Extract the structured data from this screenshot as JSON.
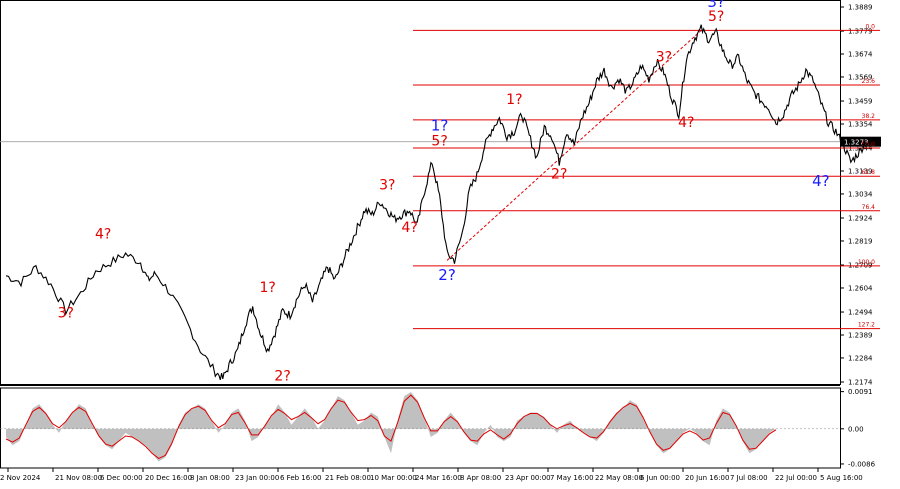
{
  "chart_data": [
    {
      "type": "line",
      "title": "",
      "yticks": [
        "1.3889",
        "1.3779",
        "1.3674",
        "1.3569",
        "1.3459",
        "1.3354",
        "1.3244",
        "1.3139",
        "1.3034",
        "1.2924",
        "1.2819",
        "1.2709",
        "1.2604",
        "1.2494",
        "1.2389",
        "1.2284",
        "1.2174"
      ],
      "ylim": [
        1.2174,
        1.3889
      ],
      "current_price": "1.3273",
      "xticks": [
        "2 Nov 2024",
        "21 Nov 08:00",
        "6 Dec 00:00",
        "20 Dec 16:00",
        "8 Jan 08:00",
        "23 Jan 00:00",
        "6 Feb 16:00",
        "21 Feb 08:00",
        "10 Mar 00:00",
        "24 Mar 16:00",
        "8 Apr 08:00",
        "23 Apr 00:00",
        "7 May 16:00",
        "22 May 08:00",
        "6 Jun 00:00",
        "20 Jun 16:00",
        "7 Jul 08:00",
        "22 Jul 00:00",
        "5 Aug 16:00"
      ],
      "price_path": [
        [
          0,
          1.266
        ],
        [
          2,
          1.263
        ],
        [
          4,
          1.27
        ],
        [
          6,
          1.262
        ],
        [
          8,
          1.25
        ],
        [
          10,
          1.258
        ],
        [
          12,
          1.268
        ],
        [
          14,
          1.272
        ],
        [
          16,
          1.276
        ],
        [
          18,
          1.272
        ],
        [
          19,
          1.264
        ],
        [
          20,
          1.267
        ],
        [
          22,
          1.258
        ],
        [
          24,
          1.246
        ],
        [
          26,
          1.232
        ],
        [
          28,
          1.222
        ],
        [
          29,
          1.219
        ],
        [
          30,
          1.226
        ],
        [
          31,
          1.232
        ],
        [
          32,
          1.244
        ],
        [
          33,
          1.252
        ],
        [
          34,
          1.24
        ],
        [
          35,
          1.232
        ],
        [
          36,
          1.24
        ],
        [
          37,
          1.25
        ],
        [
          38,
          1.248
        ],
        [
          39,
          1.256
        ],
        [
          40,
          1.262
        ],
        [
          41,
          1.254
        ],
        [
          42,
          1.262
        ],
        [
          43,
          1.27
        ],
        [
          44,
          1.264
        ],
        [
          45,
          1.272
        ],
        [
          46,
          1.28
        ],
        [
          47,
          1.288
        ],
        [
          48,
          1.296
        ],
        [
          49,
          1.294
        ],
        [
          50,
          1.3
        ],
        [
          51,
          1.296
        ],
        [
          52,
          1.292
        ],
        [
          53,
          1.294
        ],
        [
          54,
          1.296
        ],
        [
          55,
          1.289
        ],
        [
          56,
          1.305
        ],
        [
          57,
          1.318
        ],
        [
          58,
          1.302
        ],
        [
          59,
          1.276
        ],
        [
          60,
          1.273
        ],
        [
          61,
          1.285
        ],
        [
          62,
          1.305
        ],
        [
          63,
          1.312
        ],
        [
          64,
          1.325
        ],
        [
          65,
          1.333
        ],
        [
          66,
          1.338
        ],
        [
          67,
          1.33
        ],
        [
          68,
          1.332
        ],
        [
          69,
          1.34
        ],
        [
          70,
          1.33
        ],
        [
          71,
          1.32
        ],
        [
          72,
          1.334
        ],
        [
          73,
          1.33
        ],
        [
          74,
          1.318
        ],
        [
          75,
          1.332
        ],
        [
          76,
          1.326
        ],
        [
          77,
          1.338
        ],
        [
          78,
          1.345
        ],
        [
          79,
          1.355
        ],
        [
          80,
          1.36
        ],
        [
          81,
          1.352
        ],
        [
          82,
          1.356
        ],
        [
          83,
          1.35
        ],
        [
          84,
          1.355
        ],
        [
          85,
          1.362
        ],
        [
          86,
          1.356
        ],
        [
          87,
          1.364
        ],
        [
          88,
          1.359
        ],
        [
          89,
          1.348
        ],
        [
          90,
          1.34
        ],
        [
          91,
          1.365
        ],
        [
          92,
          1.374
        ],
        [
          93,
          1.379
        ],
        [
          94,
          1.374
        ],
        [
          95,
          1.377
        ],
        [
          96,
          1.368
        ],
        [
          97,
          1.362
        ],
        [
          98,
          1.366
        ],
        [
          99,
          1.356
        ],
        [
          100,
          1.35
        ],
        [
          101,
          1.346
        ],
        [
          102,
          1.343
        ],
        [
          103,
          1.336
        ],
        [
          104,
          1.34
        ],
        [
          105,
          1.348
        ],
        [
          106,
          1.353
        ],
        [
          107,
          1.36
        ],
        [
          108,
          1.355
        ],
        [
          109,
          1.345
        ],
        [
          110,
          1.336
        ],
        [
          111,
          1.332
        ],
        [
          112,
          1.326
        ],
        [
          113,
          1.318
        ],
        [
          114,
          1.322
        ],
        [
          115,
          1.327
        ],
        [
          116,
          1.3273
        ]
      ],
      "fibonacci_levels": [
        {
          "label": "0.0",
          "value": 1.3782
        },
        {
          "label": "23.6",
          "value": 1.3532
        },
        {
          "label": "38.2",
          "value": 1.3373
        },
        {
          "label": "50.0",
          "value": 1.3244
        },
        {
          "label": "61.8",
          "value": 1.3115
        },
        {
          "label": "76.4",
          "value": 1.2957
        },
        {
          "label": "100.0",
          "value": 1.2705
        },
        {
          "label": "127.2",
          "value": 1.2418
        }
      ],
      "trendline": {
        "from": [
          59,
          1.273
        ],
        "to": [
          93,
          1.3782
        ]
      },
      "wave_labels": [
        {
          "text": "4?",
          "color": "red",
          "i": 13,
          "y": 1.283
        },
        {
          "text": "3?",
          "color": "red",
          "i": 8,
          "y": 1.247
        },
        {
          "text": "1?",
          "color": "red",
          "i": 35,
          "y": 1.2585
        },
        {
          "text": "2?",
          "color": "red",
          "i": 37,
          "y": 1.218
        },
        {
          "text": "3?",
          "color": "red",
          "i": 51,
          "y": 1.3055
        },
        {
          "text": "4?",
          "color": "red",
          "i": 54,
          "y": 1.286
        },
        {
          "text": "1?",
          "color": "blue",
          "i": 58,
          "y": 1.3325
        },
        {
          "text": "5?",
          "color": "red",
          "i": 58,
          "y": 1.3255
        },
        {
          "text": "2?",
          "color": "blue",
          "i": 59,
          "y": 1.264
        },
        {
          "text": "1?",
          "color": "red",
          "i": 68,
          "y": 1.3445
        },
        {
          "text": "2?",
          "color": "red",
          "i": 74,
          "y": 1.3105
        },
        {
          "text": "3?",
          "color": "red",
          "i": 88,
          "y": 1.364
        },
        {
          "text": "4?",
          "color": "red",
          "i": 91,
          "y": 1.334
        },
        {
          "text": "3?",
          "color": "blue",
          "i": 95,
          "y": 1.389
        },
        {
          "text": "5?",
          "color": "red",
          "i": 95,
          "y": 1.3825
        },
        {
          "text": "4?",
          "color": "blue",
          "i": 109,
          "y": 1.307
        }
      ]
    },
    {
      "type": "area",
      "title": "",
      "yticks": [
        "0.0091",
        "0.00",
        "-0.0086"
      ],
      "ylim": [
        -0.0091,
        0.0095
      ],
      "zero_label": "0.00",
      "histogram": [
        -0.002,
        -0.004,
        -0.003,
        0.001,
        0.005,
        0.006,
        0.004,
        0.001,
        -0.001,
        0.002,
        0.004,
        0.006,
        0.005,
        0.001,
        -0.002,
        -0.004,
        -0.005,
        -0.003,
        -0.001,
        -0.002,
        -0.003,
        -0.004,
        -0.006,
        -0.008,
        -0.007,
        -0.004,
        0.001,
        0.004,
        0.005,
        0.006,
        0.005,
        0.002,
        -0.001,
        0.001,
        0.004,
        0.005,
        0.002,
        -0.003,
        -0.002,
        0.001,
        0.003,
        0.006,
        0.004,
        0.001,
        0.003,
        0.005,
        0.003,
        0.0,
        0.002,
        0.005,
        0.008,
        0.007,
        0.004,
        0.001,
        0.002,
        0.004,
        0.003,
        -0.002,
        -0.006,
        0.002,
        0.008,
        0.009,
        0.007,
        0.003,
        -0.002,
        -0.001,
        0.002,
        0.004,
        0.002,
        -0.001,
        -0.003,
        -0.004,
        -0.001,
        0.001,
        -0.002,
        -0.003,
        -0.002,
        0.002,
        0.003,
        0.004,
        0.004,
        0.003,
        0.001,
        -0.001,
        0.001,
        0.002,
        0.0,
        -0.001,
        -0.002,
        -0.003,
        -0.001,
        0.002,
        0.004,
        0.005,
        0.007,
        0.006,
        0.003,
        -0.001,
        -0.004,
        -0.006,
        -0.005,
        -0.003,
        -0.001,
        0.0,
        -0.001,
        -0.003,
        -0.004,
        0.002,
        0.005,
        0.004,
        0.001,
        -0.003,
        -0.006,
        -0.005,
        -0.003,
        -0.001,
        0.0
      ],
      "colors": {
        "histogram": "#c0c0c0",
        "signal": "#e00000"
      }
    }
  ],
  "colors": {
    "fib": "#e00000",
    "trend": "#e00000",
    "wave_red": "#e00000",
    "wave_blue": "#1a1aff",
    "price": "#000000"
  }
}
